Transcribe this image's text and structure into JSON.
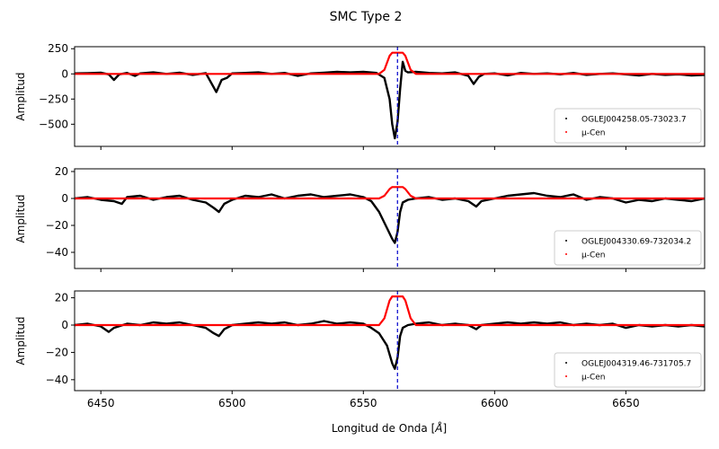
{
  "figure": {
    "suptitle": "SMC Type 2",
    "xlabel": "Longitud de Onda [$\\AA$]",
    "xlabel_text": "Longitud de Onda [",
    "xlabel_unit": "Å",
    "xlabel_close": "]"
  },
  "chart_data": [
    {
      "type": "scatter",
      "xlabel": "Longitud de Onda [Å]",
      "ylabel": "Amplitud",
      "xlim": [
        6440,
        6680
      ],
      "ylim": [
        -720,
        270
      ],
      "yticks": [
        250,
        0,
        -250,
        -500
      ],
      "ytick_labels": [
        "250",
        "0",
        "−250",
        "−500"
      ],
      "xticks": [
        6450,
        6500,
        6550,
        6600,
        6650
      ],
      "vline": 6563,
      "legend": {
        "placement": "lower-right",
        "entries": [
          "OGLEJ004258.05-73023.7",
          "μ-Cen"
        ]
      },
      "series": [
        {
          "name": "OGLEJ004258.05-73023.7",
          "color": "#000000",
          "points": [
            [
              6440,
              5
            ],
            [
              6445,
              8
            ],
            [
              6450,
              12
            ],
            [
              6453,
              -5
            ],
            [
              6455,
              -60
            ],
            [
              6457,
              -5
            ],
            [
              6460,
              10
            ],
            [
              6463,
              -20
            ],
            [
              6465,
              5
            ],
            [
              6470,
              15
            ],
            [
              6475,
              0
            ],
            [
              6480,
              12
            ],
            [
              6485,
              -10
            ],
            [
              6490,
              8
            ],
            [
              6494,
              -180
            ],
            [
              6496,
              -60
            ],
            [
              6498,
              -40
            ],
            [
              6500,
              5
            ],
            [
              6505,
              10
            ],
            [
              6510,
              15
            ],
            [
              6515,
              0
            ],
            [
              6520,
              10
            ],
            [
              6525,
              -20
            ],
            [
              6530,
              5
            ],
            [
              6535,
              12
            ],
            [
              6540,
              20
            ],
            [
              6545,
              15
            ],
            [
              6550,
              20
            ],
            [
              6555,
              10
            ],
            [
              6558,
              -40
            ],
            [
              6560,
              -250
            ],
            [
              6561,
              -500
            ],
            [
              6562,
              -640
            ],
            [
              6563,
              -480
            ],
            [
              6564,
              -150
            ],
            [
              6565,
              120
            ],
            [
              6566,
              30
            ],
            [
              6567,
              15
            ],
            [
              6570,
              20
            ],
            [
              6575,
              10
            ],
            [
              6580,
              5
            ],
            [
              6585,
              15
            ],
            [
              6590,
              -20
            ],
            [
              6592,
              -100
            ],
            [
              6594,
              -30
            ],
            [
              6596,
              0
            ],
            [
              6600,
              5
            ],
            [
              6605,
              -15
            ],
            [
              6610,
              10
            ],
            [
              6615,
              0
            ],
            [
              6620,
              5
            ],
            [
              6625,
              -5
            ],
            [
              6630,
              10
            ],
            [
              6635,
              -10
            ],
            [
              6640,
              0
            ],
            [
              6645,
              5
            ],
            [
              6650,
              -5
            ],
            [
              6655,
              -15
            ],
            [
              6660,
              0
            ],
            [
              6665,
              -10
            ],
            [
              6670,
              -5
            ],
            [
              6675,
              -15
            ],
            [
              6680,
              -10
            ]
          ]
        },
        {
          "name": "μ-Cen",
          "color": "#ff0000",
          "points": [
            [
              6440,
              0
            ],
            [
              6550,
              0
            ],
            [
              6556,
              0
            ],
            [
              6558,
              40
            ],
            [
              6560,
              180
            ],
            [
              6561,
              210
            ],
            [
              6565,
              210
            ],
            [
              6566,
              180
            ],
            [
              6568,
              40
            ],
            [
              6570,
              0
            ],
            [
              6680,
              0
            ]
          ]
        }
      ]
    },
    {
      "type": "scatter",
      "ylabel": "Amplitud",
      "xlim": [
        6440,
        6680
      ],
      "ylim": [
        -52,
        22
      ],
      "yticks": [
        20,
        0,
        -20,
        -40
      ],
      "ytick_labels": [
        "20",
        "0",
        "−20",
        "−40"
      ],
      "xticks": [
        6450,
        6500,
        6550,
        6600,
        6650
      ],
      "vline": 6563,
      "legend": {
        "placement": "lower-right",
        "entries": [
          "OGLEJ004330.69-732034.2",
          "μ-Cen"
        ]
      },
      "series": [
        {
          "name": "OGLEJ004330.69-732034.2",
          "color": "#000000",
          "points": [
            [
              6440,
              0
            ],
            [
              6445,
              1
            ],
            [
              6450,
              -1
            ],
            [
              6455,
              -2
            ],
            [
              6458,
              -4
            ],
            [
              6460,
              1
            ],
            [
              6465,
              2
            ],
            [
              6470,
              -1
            ],
            [
              6475,
              1
            ],
            [
              6480,
              2
            ],
            [
              6485,
              -1
            ],
            [
              6490,
              -3
            ],
            [
              6493,
              -7
            ],
            [
              6495,
              -10
            ],
            [
              6497,
              -4
            ],
            [
              6500,
              -1
            ],
            [
              6505,
              2
            ],
            [
              6510,
              1
            ],
            [
              6515,
              3
            ],
            [
              6520,
              0
            ],
            [
              6525,
              2
            ],
            [
              6530,
              3
            ],
            [
              6535,
              1
            ],
            [
              6540,
              2
            ],
            [
              6545,
              3
            ],
            [
              6550,
              1
            ],
            [
              6553,
              -2
            ],
            [
              6556,
              -10
            ],
            [
              6559,
              -22
            ],
            [
              6561,
              -30
            ],
            [
              6562,
              -33
            ],
            [
              6563,
              -25
            ],
            [
              6564,
              -10
            ],
            [
              6565,
              -3
            ],
            [
              6567,
              -1
            ],
            [
              6570,
              0
            ],
            [
              6575,
              1
            ],
            [
              6580,
              -1
            ],
            [
              6585,
              0
            ],
            [
              6590,
              -2
            ],
            [
              6593,
              -6
            ],
            [
              6595,
              -2
            ],
            [
              6600,
              0
            ],
            [
              6605,
              2
            ],
            [
              6610,
              3
            ],
            [
              6615,
              4
            ],
            [
              6620,
              2
            ],
            [
              6625,
              1
            ],
            [
              6630,
              3
            ],
            [
              6635,
              -1
            ],
            [
              6640,
              1
            ],
            [
              6645,
              0
            ],
            [
              6650,
              -3
            ],
            [
              6655,
              -1
            ],
            [
              6660,
              -2
            ],
            [
              6665,
              0
            ],
            [
              6670,
              -1
            ],
            [
              6675,
              -2
            ],
            [
              6680,
              0
            ]
          ]
        },
        {
          "name": "μ-Cen",
          "color": "#ff0000",
          "points": [
            [
              6440,
              0
            ],
            [
              6556,
              0
            ],
            [
              6558,
              2
            ],
            [
              6560,
              7
            ],
            [
              6561,
              8.5
            ],
            [
              6565,
              8.5
            ],
            [
              6566,
              7
            ],
            [
              6568,
              2
            ],
            [
              6570,
              0
            ],
            [
              6680,
              0
            ]
          ]
        }
      ]
    },
    {
      "type": "scatter",
      "ylabel": "Amplitud",
      "xlabel": "Longitud de Onda [Å]",
      "xlim": [
        6440,
        6680
      ],
      "ylim": [
        -48,
        25
      ],
      "yticks": [
        20,
        0,
        -20,
        -40
      ],
      "ytick_labels": [
        "20",
        "0",
        "−20",
        "−40"
      ],
      "xticks": [
        6450,
        6500,
        6550,
        6600,
        6650
      ],
      "xtick_labels": [
        "6450",
        "6500",
        "6550",
        "6600",
        "6650"
      ],
      "vline": 6563,
      "legend": {
        "placement": "lower-right",
        "entries": [
          "OGLEJ004319.46-731705.7",
          "μ-Cen"
        ]
      },
      "series": [
        {
          "name": "OGLEJ004319.46-731705.7",
          "color": "#000000",
          "points": [
            [
              6440,
              0
            ],
            [
              6445,
              1
            ],
            [
              6450,
              -1
            ],
            [
              6453,
              -5
            ],
            [
              6455,
              -2
            ],
            [
              6460,
              1
            ],
            [
              6465,
              0
            ],
            [
              6470,
              2
            ],
            [
              6475,
              1
            ],
            [
              6480,
              2
            ],
            [
              6485,
              0
            ],
            [
              6490,
              -2
            ],
            [
              6493,
              -6
            ],
            [
              6495,
              -8
            ],
            [
              6497,
              -3
            ],
            [
              6500,
              0
            ],
            [
              6505,
              1
            ],
            [
              6510,
              2
            ],
            [
              6515,
              1
            ],
            [
              6520,
              2
            ],
            [
              6525,
              0
            ],
            [
              6530,
              1
            ],
            [
              6535,
              3
            ],
            [
              6540,
              1
            ],
            [
              6545,
              2
            ],
            [
              6550,
              1
            ],
            [
              6553,
              -2
            ],
            [
              6556,
              -6
            ],
            [
              6559,
              -15
            ],
            [
              6561,
              -28
            ],
            [
              6562,
              -32
            ],
            [
              6563,
              -24
            ],
            [
              6564,
              -8
            ],
            [
              6565,
              -2
            ],
            [
              6567,
              0
            ],
            [
              6570,
              1
            ],
            [
              6575,
              2
            ],
            [
              6580,
              0
            ],
            [
              6585,
              1
            ],
            [
              6590,
              0
            ],
            [
              6593,
              -3
            ],
            [
              6595,
              0
            ],
            [
              6600,
              1
            ],
            [
              6605,
              2
            ],
            [
              6610,
              1
            ],
            [
              6615,
              2
            ],
            [
              6620,
              1
            ],
            [
              6625,
              2
            ],
            [
              6630,
              0
            ],
            [
              6635,
              1
            ],
            [
              6640,
              0
            ],
            [
              6645,
              1
            ],
            [
              6650,
              -2
            ],
            [
              6655,
              0
            ],
            [
              6660,
              -1
            ],
            [
              6665,
              0
            ],
            [
              6670,
              -1
            ],
            [
              6675,
              0
            ],
            [
              6680,
              -1
            ]
          ]
        },
        {
          "name": "μ-Cen",
          "color": "#ff0000",
          "points": [
            [
              6440,
              0
            ],
            [
              6556,
              0
            ],
            [
              6558,
              5
            ],
            [
              6560,
              18
            ],
            [
              6561,
              21
            ],
            [
              6565,
              21
            ],
            [
              6566,
              18
            ],
            [
              6568,
              5
            ],
            [
              6570,
              0
            ],
            [
              6680,
              0
            ]
          ]
        }
      ]
    }
  ]
}
